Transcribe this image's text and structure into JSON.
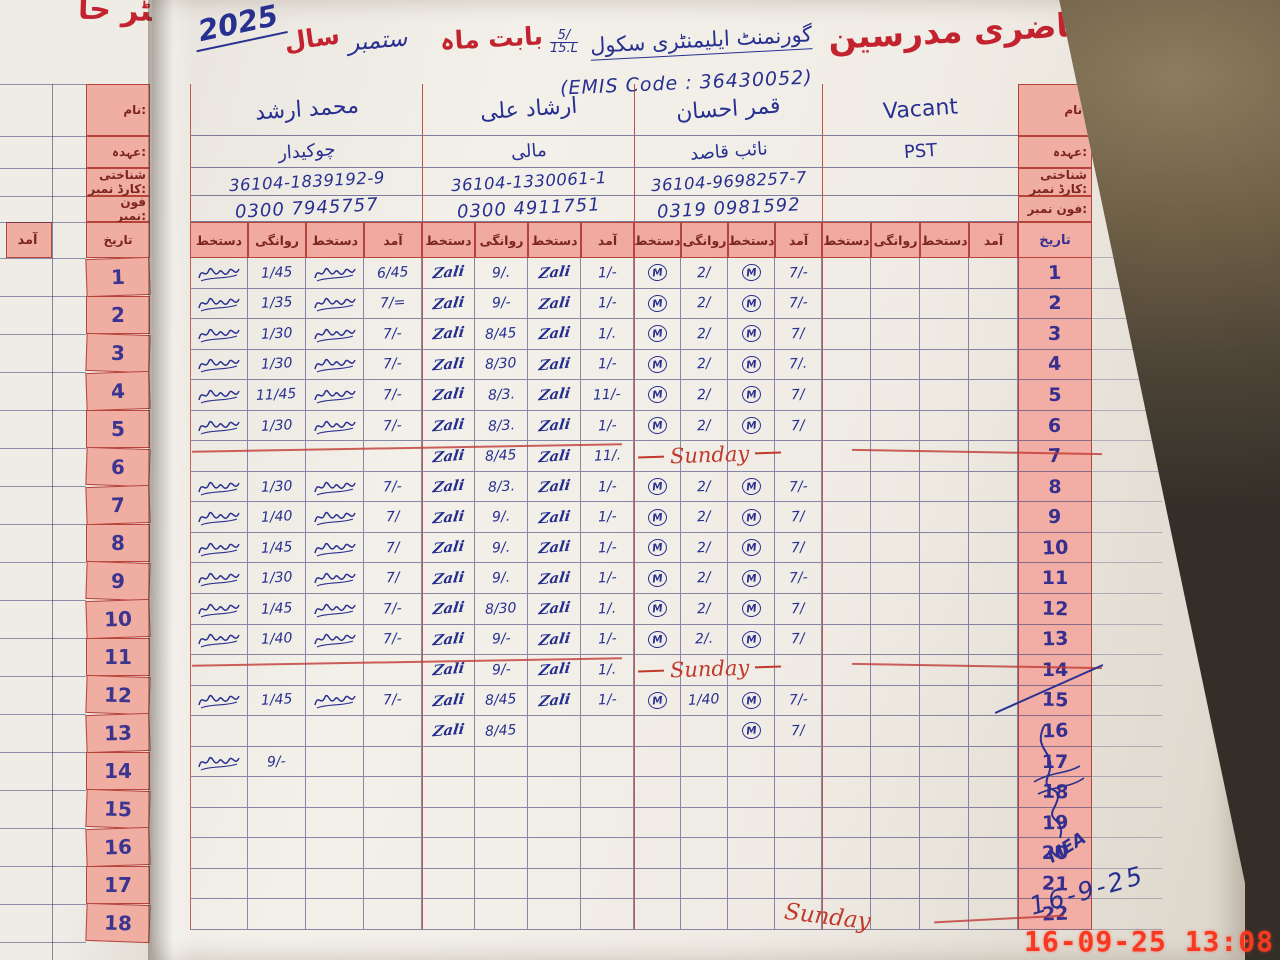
{
  "colors": {
    "ink_blue": "#2a3190",
    "print_red": "#b5443c",
    "pink": "#f0ada2",
    "title_red": "#c2232e",
    "timestamp_red": "#f93822"
  },
  "title": {
    "year": "2025",
    "year_label": "سال",
    "month_handwritten": "ستمبر",
    "about_month": "بابت ماہ",
    "school_number_top": "5/",
    "school_number_bottom": "15.L",
    "school_name": "گورنمنٹ ایلیمنٹری سکول",
    "register_title": "رجسٹر حاضری مدرسین",
    "emis": "(EMIS Code : 36430052)"
  },
  "labels": {
    "name": "نام:",
    "designation": "عہدہ:",
    "cnic": "شناختی کارڈ نمبر:",
    "phone": "فون نمبر:",
    "date": "تاریخ",
    "arrival": "آمد",
    "departure": "روانگی",
    "signature": "دستخط"
  },
  "teachers": [
    {
      "name": "محمد ارشد",
      "designation": "چوکیدار",
      "cnic": "36104-1839192-9",
      "phone": "0300 7945757",
      "sig_style": "scribble"
    },
    {
      "name": "ارشاد علی",
      "designation": "مالی",
      "cnic": "36104-1330061-1",
      "phone": "0300 4911751",
      "sig_style": "cursive",
      "sig_text": "Zali"
    },
    {
      "name": "قمر احسان",
      "designation": "نائب قاصد",
      "cnic": "36104-9698257-7",
      "phone": "0319 0981592",
      "sig_style": "circled",
      "sig_text": "M"
    },
    {
      "name": "Vacant",
      "designation": "PST",
      "cnic": "",
      "phone": "",
      "sig_style": ""
    }
  ],
  "attendance": {
    "sunday_label": "Sunday",
    "rows": [
      {
        "date": "1",
        "cells": [
          "S",
          "1/45",
          "S",
          "6/45",
          "T",
          "9/.",
          "T",
          "1/-",
          "M",
          "2/",
          "M",
          "7/-",
          "",
          "",
          "",
          ""
        ]
      },
      {
        "date": "2",
        "cells": [
          "S",
          "1/35",
          "S",
          "7/=",
          "T",
          "9/-",
          "T",
          "1/-",
          "M",
          "2/",
          "M",
          "7/-",
          "",
          "",
          "",
          ""
        ]
      },
      {
        "date": "3",
        "cells": [
          "S",
          "1/30",
          "S",
          "7/-",
          "T",
          "8/45",
          "T",
          "1/.",
          "M",
          "2/",
          "M",
          "7/",
          "",
          "",
          "",
          ""
        ]
      },
      {
        "date": "4",
        "cells": [
          "S",
          "1/30",
          "S",
          "7/-",
          "T",
          "8/30",
          "T",
          "1/-",
          "M",
          "2/",
          "M",
          "7/.",
          "",
          "",
          "",
          ""
        ]
      },
      {
        "date": "5",
        "cells": [
          "S",
          "11/45",
          "S",
          "7/-",
          "T",
          "8/3.",
          "T",
          "11/-",
          "M",
          "2/",
          "M",
          "7/",
          "",
          "",
          "",
          ""
        ]
      },
      {
        "date": "6",
        "cells": [
          "S",
          "1/30",
          "S",
          "7/-",
          "T",
          "8/3.",
          "T",
          "1/-",
          "M",
          "2/",
          "M",
          "7/",
          "",
          "",
          "",
          ""
        ]
      },
      {
        "date": "7",
        "sunday": true,
        "cells": [
          "",
          "",
          "",
          "",
          "T",
          "8/45",
          "T",
          "11/.",
          "",
          "",
          "",
          "",
          "",
          "",
          "",
          ""
        ]
      },
      {
        "date": "8",
        "cells": [
          "S",
          "1/30",
          "S",
          "7/-",
          "T",
          "8/3.",
          "T",
          "1/-",
          "M",
          "2/",
          "M",
          "7/-",
          "",
          "",
          "",
          ""
        ]
      },
      {
        "date": "9",
        "cells": [
          "S",
          "1/40",
          "S",
          "7/",
          "T",
          "9/.",
          "T",
          "1/-",
          "M",
          "2/",
          "M",
          "7/",
          "",
          "",
          "",
          ""
        ]
      },
      {
        "date": "10",
        "cells": [
          "S",
          "1/45",
          "S",
          "7/",
          "T",
          "9/.",
          "T",
          "1/-",
          "M",
          "2/",
          "M",
          "7/",
          "",
          "",
          "",
          ""
        ]
      },
      {
        "date": "11",
        "cells": [
          "S",
          "1/30",
          "S",
          "7/",
          "T",
          "9/.",
          "T",
          "1/-",
          "M",
          "2/",
          "M",
          "7/-",
          "",
          "",
          "",
          ""
        ]
      },
      {
        "date": "12",
        "cells": [
          "S",
          "1/45",
          "S",
          "7/-",
          "T",
          "8/30",
          "T",
          "1/.",
          "M",
          "2/",
          "M",
          "7/",
          "",
          "",
          "",
          ""
        ]
      },
      {
        "date": "13",
        "cells": [
          "S",
          "1/40",
          "S",
          "7/-",
          "T",
          "9/-",
          "T",
          "1/-",
          "M",
          "2/.",
          "M",
          "7/",
          "",
          "",
          "",
          ""
        ]
      },
      {
        "date": "14",
        "sunday": true,
        "cells": [
          "",
          "",
          "",
          "",
          "T",
          "9/-",
          "T",
          "1/.",
          "",
          "",
          "",
          "",
          "",
          "",
          "",
          ""
        ]
      },
      {
        "date": "15",
        "cells": [
          "S",
          "1/45",
          "S",
          "7/-",
          "T",
          "8/45",
          "T",
          "1/-",
          "M",
          "1/40",
          "M",
          "7/-",
          "",
          "",
          "",
          ""
        ]
      },
      {
        "date": "16",
        "cells": [
          "",
          "",
          "",
          "",
          "T",
          "8/45",
          "",
          "",
          "",
          "",
          "M",
          "7/",
          "",
          "",
          "",
          ""
        ]
      },
      {
        "date": "17",
        "cells": [
          "S",
          "9/-",
          "",
          "",
          "",
          "",
          "",
          "",
          "",
          "",
          "",
          "",
          "",
          "",
          "",
          ""
        ]
      },
      {
        "date": "18",
        "cells": [
          "",
          "",
          "",
          "",
          "",
          "",
          "",
          "",
          "",
          "",
          "",
          "",
          "",
          "",
          "",
          ""
        ]
      },
      {
        "date": "19",
        "cells": [
          "",
          "",
          "",
          "",
          "",
          "",
          "",
          "",
          "",
          "",
          "",
          "",
          "",
          "",
          "",
          ""
        ]
      },
      {
        "date": "20",
        "cells": [
          "",
          "",
          "",
          "",
          "",
          "",
          "",
          "",
          "",
          "",
          "",
          "",
          "",
          "",
          "",
          ""
        ]
      },
      {
        "date": "21",
        "cells": [
          "",
          "",
          "",
          "",
          "",
          "",
          "",
          "",
          "",
          "",
          "",
          "",
          "",
          "",
          "",
          ""
        ]
      },
      {
        "date": "22",
        "cells": [
          "",
          "",
          "",
          "",
          "",
          "",
          "",
          "",
          "",
          "",
          "",
          "",
          "",
          "",
          "",
          ""
        ]
      }
    ]
  },
  "left_page": {
    "title_fragment": "رجسٹر حا",
    "dates": [
      "1",
      "2",
      "3",
      "4",
      "5",
      "6",
      "7",
      "8",
      "9",
      "10",
      "11",
      "12",
      "13",
      "14",
      "15",
      "16",
      "17",
      "18"
    ]
  },
  "annotations": {
    "bottom_sunday": "Sunday",
    "handwritten_date": "16-9-25",
    "signature_note": "MEA",
    "camera_timestamp": "16-09-25 13:08"
  }
}
